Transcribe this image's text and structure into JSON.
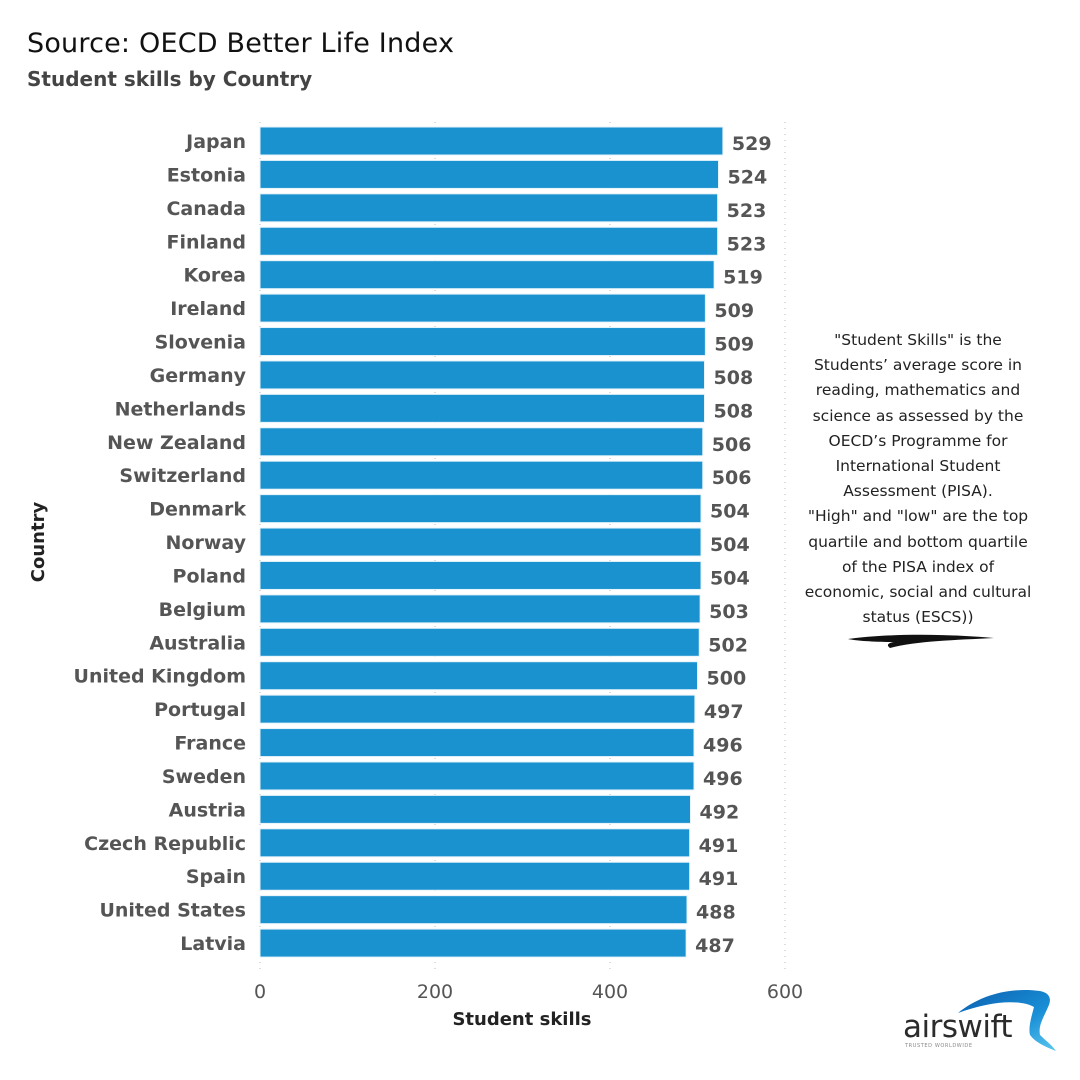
{
  "header": {
    "title": "Source: OECD Better Life Index",
    "subtitle": "Student skills by Country"
  },
  "note": {
    "lines": [
      "\"Student Skills\" is the",
      "Students’ average score in",
      "reading, mathematics and",
      "science as assessed by the",
      "OECD’s Programme for",
      "International Student",
      "Assessment (PISA).",
      "\"High\" and \"low\" are the top",
      "quartile and bottom quartile",
      "of the PISA index of",
      "economic, social and cultural",
      "status (ESCS))"
    ]
  },
  "logo": {
    "name": "airswift",
    "tagline": "TRUSTED WORLDWIDE",
    "brand_color": "#1a8fd6"
  },
  "colors": {
    "bar": "#1a92cf",
    "category_label": "#555555",
    "value_label": "#555555",
    "axis_title": "#222222",
    "grid": "#bbbbbb"
  },
  "chart_data": {
    "type": "bar",
    "orientation": "horizontal",
    "title": "Student skills by Country",
    "xlabel": "Student skills",
    "ylabel": "Country",
    "xlim": [
      0,
      600
    ],
    "xticks": [
      0,
      200,
      400,
      600
    ],
    "grid": true,
    "legend": "none",
    "categories": [
      "Japan",
      "Estonia",
      "Canada",
      "Finland",
      "Korea",
      "Ireland",
      "Slovenia",
      "Germany",
      "Netherlands",
      "New Zealand",
      "Switzerland",
      "Denmark",
      "Norway",
      "Poland",
      "Belgium",
      "Australia",
      "United Kingdom",
      "Portugal",
      "France",
      "Sweden",
      "Austria",
      "Czech Republic",
      "Spain",
      "United States",
      "Latvia"
    ],
    "values": [
      529,
      524,
      523,
      523,
      519,
      509,
      509,
      508,
      508,
      506,
      506,
      504,
      504,
      504,
      503,
      502,
      500,
      497,
      496,
      496,
      492,
      491,
      491,
      488,
      487
    ]
  }
}
